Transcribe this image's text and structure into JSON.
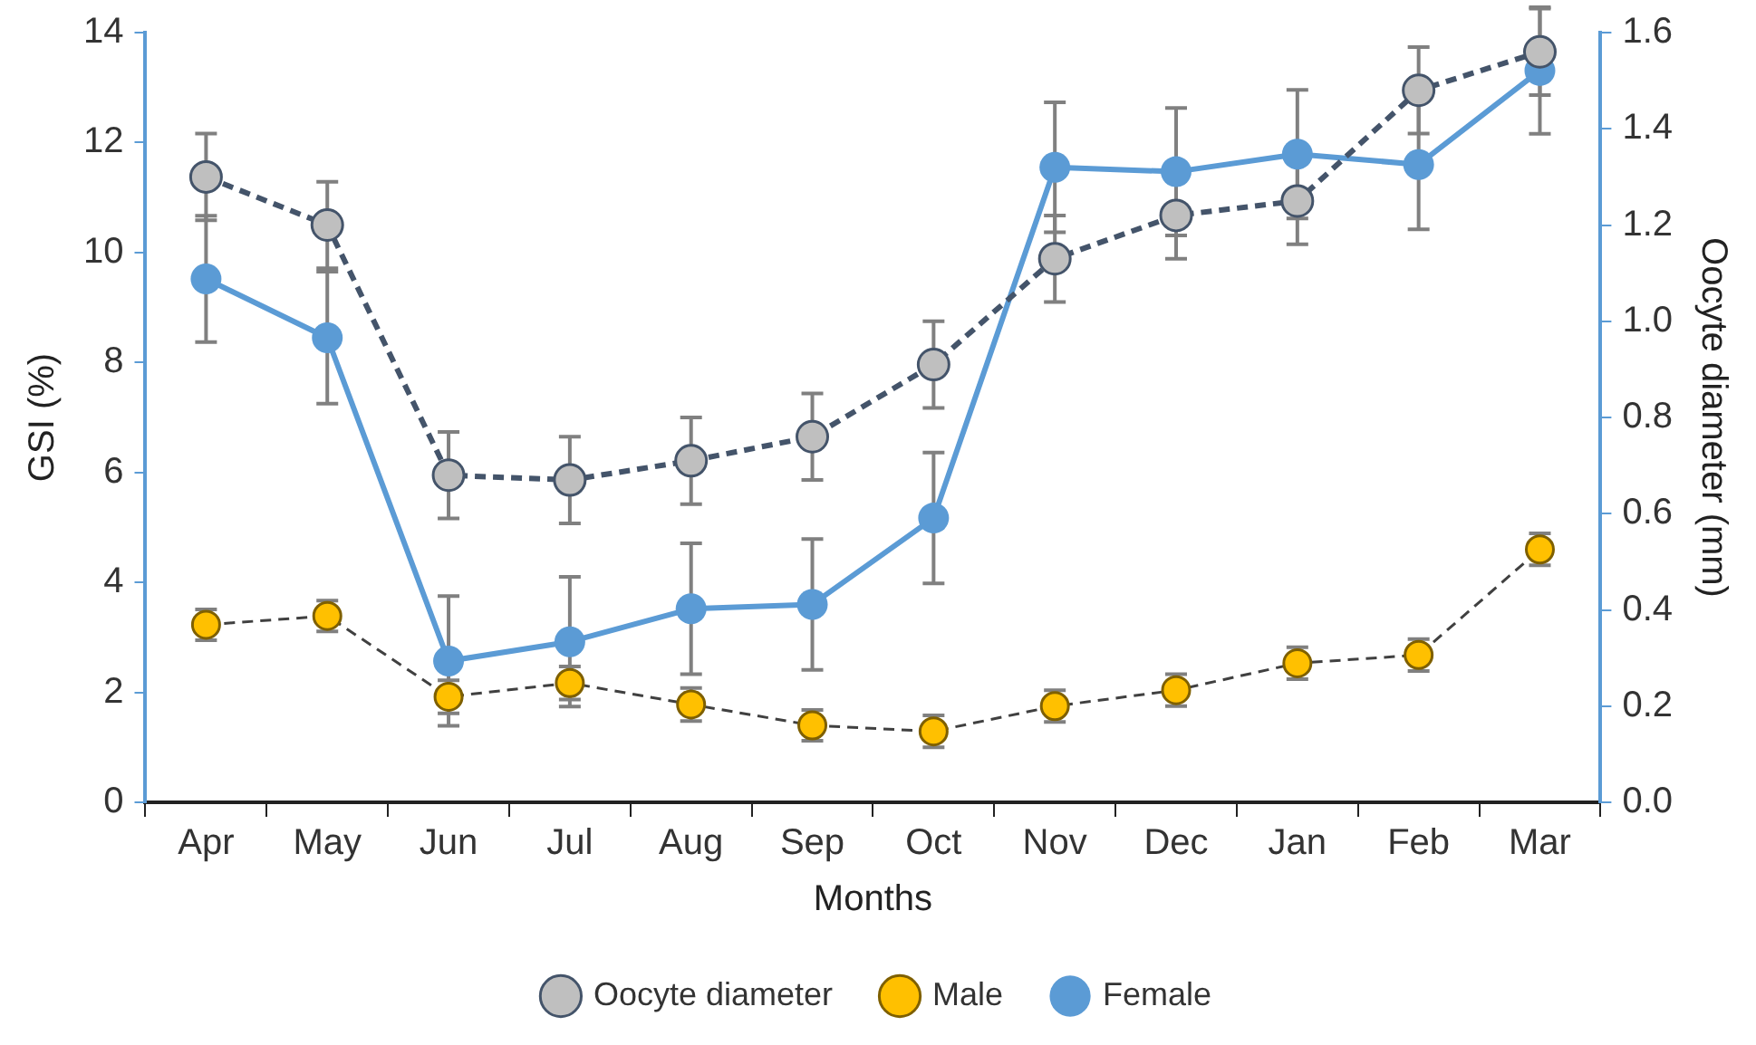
{
  "chart_data": {
    "type": "line",
    "xlabel": "Months",
    "ylabel": "GSI (%)",
    "y2label": "Oocyte diameter (mm)",
    "categories": [
      "Apr",
      "May",
      "Jun",
      "Jul",
      "Aug",
      "Sep",
      "Oct",
      "Nov",
      "Dec",
      "Jan",
      "Feb",
      "Mar"
    ],
    "ylim": [
      0,
      14
    ],
    "yticks": [
      0,
      2,
      4,
      6,
      8,
      10,
      12,
      14
    ],
    "y2lim": [
      0,
      1.6
    ],
    "y2ticks": [
      {
        "value": 0,
        "label": "0.0"
      },
      {
        "value": 0.2,
        "label": "0.2"
      },
      {
        "value": 0.4,
        "label": "0.4"
      },
      {
        "value": 0.6,
        "label": "0.6"
      },
      {
        "value": 0.8,
        "label": "0.8"
      },
      {
        "value": 1,
        "label": "1.0"
      },
      {
        "value": 1.2,
        "label": "1.2"
      },
      {
        "value": 1.4,
        "label": "1.4"
      },
      {
        "value": 1.6,
        "label": "1.6"
      }
    ],
    "grid": false,
    "legend": "bottom",
    "marker": "circle",
    "series": [
      {
        "name": "Female",
        "color": "#5b9bd5",
        "line_style": "solid",
        "values": [
          9.52,
          8.45,
          2.57,
          2.92,
          3.52,
          3.6,
          5.17,
          11.55,
          11.47,
          11.79,
          11.6,
          13.31
        ],
        "errors": [
          1.15,
          1.2,
          1.18,
          1.18,
          1.19,
          1.19,
          1.19,
          1.18,
          1.16,
          1.17,
          1.18,
          1.15
        ]
      },
      {
        "name": "Male",
        "color": "#ffc000",
        "line_style": "dashed",
        "values": [
          3.23,
          3.39,
          1.92,
          2.17,
          1.78,
          1.4,
          1.29,
          1.75,
          2.04,
          2.53,
          2.68,
          4.6
        ],
        "errors": [
          0.28,
          0.28,
          0.3,
          0.3,
          0.3,
          0.28,
          0.29,
          0.29,
          0.29,
          0.29,
          0.29,
          0.29
        ]
      },
      {
        "name": "Oocyte diameter",
        "color": "#bfbfbf",
        "line_style": "dashed",
        "axis": "y2",
        "values": [
          1.3,
          1.2,
          0.68,
          0.67,
          0.71,
          0.76,
          0.91,
          1.13,
          1.22,
          1.25,
          1.48,
          1.56
        ],
        "errors": [
          0.09,
          0.09,
          0.09,
          0.09,
          0.09,
          0.09,
          0.09,
          0.09,
          0.09,
          0.09,
          0.09,
          0.09
        ]
      }
    ]
  }
}
